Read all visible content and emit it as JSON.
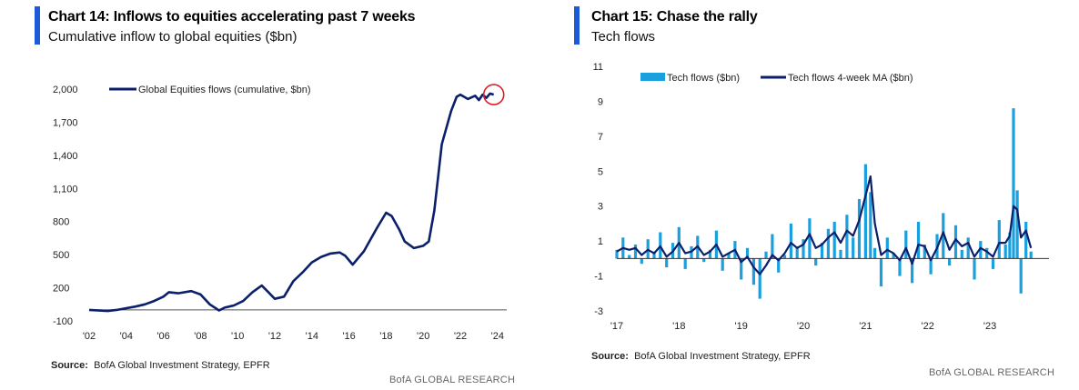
{
  "charts": [
    {
      "title": "Chart 14: Inflows to equities accelerating past 7 weeks",
      "subtitle": "Cumulative inflow to global equities ($bn)",
      "source_label": "Source:",
      "source_text": "BofA Global Investment Strategy, EPFR",
      "brand": "BofA GLOBAL RESEARCH"
    },
    {
      "title": "Chart 15: Chase the rally",
      "subtitle": "Tech flows",
      "source_label": "Source:",
      "source_text": "BofA Global Investment Strategy, EPFR",
      "brand": "BofA GLOBAL RESEARCH"
    }
  ],
  "chart_data": [
    {
      "type": "line",
      "title": "Chart 14: Inflows to equities accelerating past 7 weeks",
      "ylabel": "Cumulative inflow to global equities ($bn)",
      "xlim": [
        2002,
        2024.5
      ],
      "ylim": [
        -100,
        2000
      ],
      "yticks": [
        -100,
        200,
        500,
        800,
        1100,
        1400,
        1700,
        2000
      ],
      "ytick_labels": [
        "-100",
        "200",
        "500",
        "800",
        "1,100",
        "1,400",
        "1,700",
        "2,000"
      ],
      "xticks": [
        2002,
        2004,
        2006,
        2008,
        2010,
        2012,
        2014,
        2016,
        2018,
        2020,
        2022,
        2024
      ],
      "xtick_labels": [
        "'02",
        "'04",
        "'06",
        "'08",
        "'10",
        "'12",
        "'14",
        "'16",
        "'18",
        "'20",
        "'22",
        "'24"
      ],
      "baseline": 0,
      "highlight": {
        "x": 2023.8,
        "y": 1950
      },
      "series": [
        {
          "name": "Global Equities flows (cumulative, $bn)",
          "color": "#0b1f6b",
          "x": [
            2002.0,
            2003.0,
            2003.5,
            2004.5,
            2005.0,
            2005.5,
            2006.0,
            2006.3,
            2006.8,
            2007.5,
            2008.0,
            2008.5,
            2009.0,
            2009.3,
            2009.8,
            2010.3,
            2010.8,
            2011.3,
            2011.6,
            2012.0,
            2012.5,
            2013.0,
            2013.5,
            2014.0,
            2014.5,
            2015.0,
            2015.5,
            2015.8,
            2016.2,
            2016.8,
            2017.5,
            2018.0,
            2018.3,
            2018.7,
            2019.0,
            2019.5,
            2020.0,
            2020.3,
            2020.6,
            2021.0,
            2021.5,
            2021.8,
            2022.0,
            2022.4,
            2022.8,
            2023.0,
            2023.2,
            2023.4,
            2023.6,
            2023.8
          ],
          "y": [
            0,
            -10,
            0,
            30,
            50,
            80,
            120,
            160,
            150,
            170,
            140,
            50,
            -5,
            20,
            40,
            80,
            160,
            220,
            170,
            100,
            120,
            260,
            340,
            430,
            480,
            510,
            520,
            490,
            410,
            530,
            740,
            880,
            850,
            730,
            620,
            560,
            580,
            620,
            900,
            1500,
            1800,
            1930,
            1950,
            1910,
            1940,
            1900,
            1950,
            1920,
            1960,
            1950
          ]
        }
      ]
    },
    {
      "type": "bar",
      "title": "Chart 15: Chase the rally",
      "ylabel": "Tech flows",
      "xlim": [
        2017,
        2023.95
      ],
      "ylim": [
        -3,
        11
      ],
      "yticks": [
        -3,
        -1,
        1,
        3,
        5,
        7,
        9,
        11
      ],
      "xticks": [
        2017,
        2018,
        2019,
        2020,
        2021,
        2022,
        2023
      ],
      "xtick_labels": [
        "'17",
        "'18",
        "'19",
        "'20",
        "'21",
        "'22",
        "'23"
      ],
      "series": [
        {
          "name": "Tech flows ($bn)",
          "type": "bar",
          "color": "#1aa0dc",
          "x": [
            2017.0,
            2017.1,
            2017.2,
            2017.3,
            2017.4,
            2017.5,
            2017.6,
            2017.7,
            2017.8,
            2017.9,
            2018.0,
            2018.1,
            2018.2,
            2018.3,
            2018.4,
            2018.5,
            2018.6,
            2018.7,
            2018.8,
            2018.9,
            2019.0,
            2019.1,
            2019.2,
            2019.3,
            2019.4,
            2019.5,
            2019.6,
            2019.7,
            2019.8,
            2019.9,
            2020.0,
            2020.1,
            2020.2,
            2020.3,
            2020.4,
            2020.5,
            2020.6,
            2020.7,
            2020.8,
            2020.9,
            2021.0,
            2021.08,
            2021.15,
            2021.25,
            2021.35,
            2021.45,
            2021.55,
            2021.65,
            2021.75,
            2021.85,
            2021.95,
            2022.05,
            2022.15,
            2022.25,
            2022.35,
            2022.45,
            2022.55,
            2022.65,
            2022.75,
            2022.85,
            2022.95,
            2023.05,
            2023.15,
            2023.25,
            2023.32,
            2023.38,
            2023.44,
            2023.5,
            2023.58,
            2023.66
          ],
          "y": [
            0.5,
            1.2,
            0.2,
            0.8,
            -0.3,
            1.1,
            0.4,
            1.5,
            -0.5,
            0.9,
            1.8,
            -0.6,
            0.7,
            1.3,
            -0.2,
            0.5,
            1.6,
            -0.7,
            0.3,
            1.0,
            -1.2,
            0.6,
            -1.5,
            -2.3,
            0.4,
            1.4,
            -0.8,
            0.2,
            2.0,
            0.7,
            1.1,
            2.3,
            -0.4,
            0.9,
            1.7,
            2.1,
            0.5,
            2.5,
            1.2,
            3.4,
            5.4,
            3.8,
            0.6,
            -1.6,
            1.2,
            0.3,
            -1.0,
            1.6,
            -1.4,
            2.1,
            0.8,
            -0.9,
            1.4,
            2.6,
            -0.4,
            1.9,
            0.5,
            1.2,
            -1.2,
            1.0,
            0.6,
            -0.6,
            2.2,
            0.8,
            1.5,
            8.6,
            3.9,
            -2.0,
            2.1,
            0.4
          ]
        },
        {
          "name": "Tech flows 4-week MA ($bn)",
          "type": "line",
          "color": "#0b1f6b",
          "x": [
            2017.0,
            2017.1,
            2017.2,
            2017.3,
            2017.4,
            2017.5,
            2017.6,
            2017.7,
            2017.8,
            2017.9,
            2018.0,
            2018.1,
            2018.2,
            2018.3,
            2018.4,
            2018.5,
            2018.6,
            2018.7,
            2018.8,
            2018.9,
            2019.0,
            2019.1,
            2019.2,
            2019.3,
            2019.4,
            2019.5,
            2019.6,
            2019.7,
            2019.8,
            2019.9,
            2020.0,
            2020.1,
            2020.2,
            2020.3,
            2020.4,
            2020.5,
            2020.6,
            2020.7,
            2020.8,
            2020.9,
            2021.0,
            2021.08,
            2021.15,
            2021.25,
            2021.35,
            2021.45,
            2021.55,
            2021.65,
            2021.75,
            2021.85,
            2021.95,
            2022.05,
            2022.15,
            2022.25,
            2022.35,
            2022.45,
            2022.55,
            2022.65,
            2022.75,
            2022.85,
            2022.95,
            2023.05,
            2023.15,
            2023.25,
            2023.32,
            2023.38,
            2023.44,
            2023.5,
            2023.58,
            2023.66
          ],
          "y": [
            0.4,
            0.6,
            0.5,
            0.6,
            0.2,
            0.5,
            0.3,
            0.7,
            0.1,
            0.4,
            0.9,
            0.3,
            0.4,
            0.7,
            0.2,
            0.4,
            0.8,
            0.1,
            0.3,
            0.5,
            -0.2,
            0.1,
            -0.5,
            -0.9,
            -0.4,
            0.2,
            -0.1,
            0.3,
            0.9,
            0.6,
            0.8,
            1.4,
            0.6,
            0.8,
            1.2,
            1.5,
            0.9,
            1.6,
            1.3,
            2.2,
            3.6,
            4.7,
            2.0,
            0.2,
            0.5,
            0.3,
            -0.1,
            0.6,
            -0.3,
            0.8,
            0.7,
            -0.1,
            0.6,
            1.5,
            0.5,
            1.1,
            0.7,
            0.9,
            0.1,
            0.6,
            0.4,
            0.1,
            0.9,
            0.9,
            1.3,
            3.0,
            2.8,
            1.2,
            1.6,
            0.6
          ]
        }
      ]
    }
  ]
}
